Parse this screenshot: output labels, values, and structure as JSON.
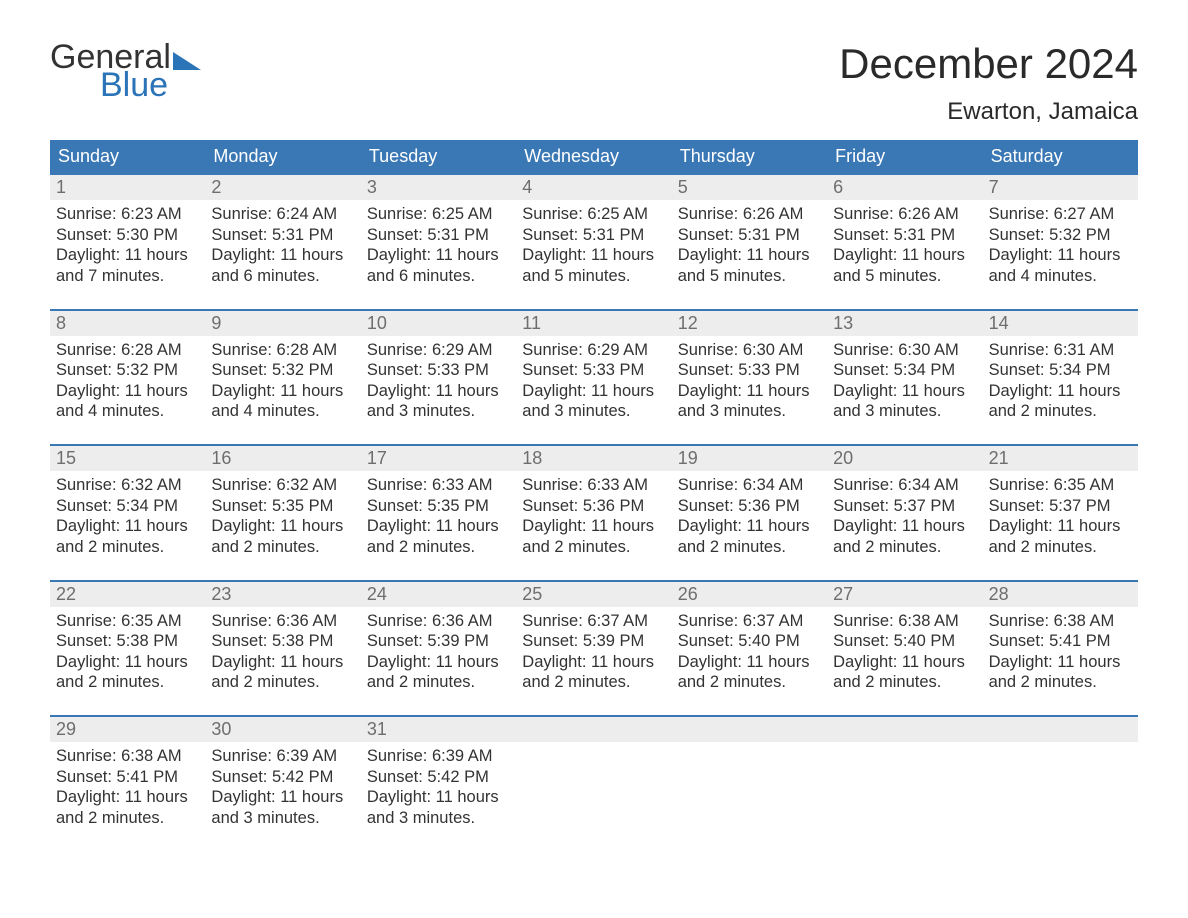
{
  "logo": {
    "word1": "General",
    "word2": "Blue"
  },
  "title": "December 2024",
  "location": "Ewarton, Jamaica",
  "colors": {
    "header_bg": "#3a78b5",
    "header_text": "#ffffff",
    "daynum_bg": "#ededed",
    "daynum_text": "#6e6e6e",
    "body_text": "#333333",
    "accent": "#2b74b8",
    "page_bg": "#ffffff"
  },
  "day_names": [
    "Sunday",
    "Monday",
    "Tuesday",
    "Wednesday",
    "Thursday",
    "Friday",
    "Saturday"
  ],
  "weeks": [
    [
      {
        "n": "1",
        "sr": "Sunrise: 6:23 AM",
        "ss": "Sunset: 5:30 PM",
        "d1": "Daylight: 11 hours",
        "d2": "and 7 minutes."
      },
      {
        "n": "2",
        "sr": "Sunrise: 6:24 AM",
        "ss": "Sunset: 5:31 PM",
        "d1": "Daylight: 11 hours",
        "d2": "and 6 minutes."
      },
      {
        "n": "3",
        "sr": "Sunrise: 6:25 AM",
        "ss": "Sunset: 5:31 PM",
        "d1": "Daylight: 11 hours",
        "d2": "and 6 minutes."
      },
      {
        "n": "4",
        "sr": "Sunrise: 6:25 AM",
        "ss": "Sunset: 5:31 PM",
        "d1": "Daylight: 11 hours",
        "d2": "and 5 minutes."
      },
      {
        "n": "5",
        "sr": "Sunrise: 6:26 AM",
        "ss": "Sunset: 5:31 PM",
        "d1": "Daylight: 11 hours",
        "d2": "and 5 minutes."
      },
      {
        "n": "6",
        "sr": "Sunrise: 6:26 AM",
        "ss": "Sunset: 5:31 PM",
        "d1": "Daylight: 11 hours",
        "d2": "and 5 minutes."
      },
      {
        "n": "7",
        "sr": "Sunrise: 6:27 AM",
        "ss": "Sunset: 5:32 PM",
        "d1": "Daylight: 11 hours",
        "d2": "and 4 minutes."
      }
    ],
    [
      {
        "n": "8",
        "sr": "Sunrise: 6:28 AM",
        "ss": "Sunset: 5:32 PM",
        "d1": "Daylight: 11 hours",
        "d2": "and 4 minutes."
      },
      {
        "n": "9",
        "sr": "Sunrise: 6:28 AM",
        "ss": "Sunset: 5:32 PM",
        "d1": "Daylight: 11 hours",
        "d2": "and 4 minutes."
      },
      {
        "n": "10",
        "sr": "Sunrise: 6:29 AM",
        "ss": "Sunset: 5:33 PM",
        "d1": "Daylight: 11 hours",
        "d2": "and 3 minutes."
      },
      {
        "n": "11",
        "sr": "Sunrise: 6:29 AM",
        "ss": "Sunset: 5:33 PM",
        "d1": "Daylight: 11 hours",
        "d2": "and 3 minutes."
      },
      {
        "n": "12",
        "sr": "Sunrise: 6:30 AM",
        "ss": "Sunset: 5:33 PM",
        "d1": "Daylight: 11 hours",
        "d2": "and 3 minutes."
      },
      {
        "n": "13",
        "sr": "Sunrise: 6:30 AM",
        "ss": "Sunset: 5:34 PM",
        "d1": "Daylight: 11 hours",
        "d2": "and 3 minutes."
      },
      {
        "n": "14",
        "sr": "Sunrise: 6:31 AM",
        "ss": "Sunset: 5:34 PM",
        "d1": "Daylight: 11 hours",
        "d2": "and 2 minutes."
      }
    ],
    [
      {
        "n": "15",
        "sr": "Sunrise: 6:32 AM",
        "ss": "Sunset: 5:34 PM",
        "d1": "Daylight: 11 hours",
        "d2": "and 2 minutes."
      },
      {
        "n": "16",
        "sr": "Sunrise: 6:32 AM",
        "ss": "Sunset: 5:35 PM",
        "d1": "Daylight: 11 hours",
        "d2": "and 2 minutes."
      },
      {
        "n": "17",
        "sr": "Sunrise: 6:33 AM",
        "ss": "Sunset: 5:35 PM",
        "d1": "Daylight: 11 hours",
        "d2": "and 2 minutes."
      },
      {
        "n": "18",
        "sr": "Sunrise: 6:33 AM",
        "ss": "Sunset: 5:36 PM",
        "d1": "Daylight: 11 hours",
        "d2": "and 2 minutes."
      },
      {
        "n": "19",
        "sr": "Sunrise: 6:34 AM",
        "ss": "Sunset: 5:36 PM",
        "d1": "Daylight: 11 hours",
        "d2": "and 2 minutes."
      },
      {
        "n": "20",
        "sr": "Sunrise: 6:34 AM",
        "ss": "Sunset: 5:37 PM",
        "d1": "Daylight: 11 hours",
        "d2": "and 2 minutes."
      },
      {
        "n": "21",
        "sr": "Sunrise: 6:35 AM",
        "ss": "Sunset: 5:37 PM",
        "d1": "Daylight: 11 hours",
        "d2": "and 2 minutes."
      }
    ],
    [
      {
        "n": "22",
        "sr": "Sunrise: 6:35 AM",
        "ss": "Sunset: 5:38 PM",
        "d1": "Daylight: 11 hours",
        "d2": "and 2 minutes."
      },
      {
        "n": "23",
        "sr": "Sunrise: 6:36 AM",
        "ss": "Sunset: 5:38 PM",
        "d1": "Daylight: 11 hours",
        "d2": "and 2 minutes."
      },
      {
        "n": "24",
        "sr": "Sunrise: 6:36 AM",
        "ss": "Sunset: 5:39 PM",
        "d1": "Daylight: 11 hours",
        "d2": "and 2 minutes."
      },
      {
        "n": "25",
        "sr": "Sunrise: 6:37 AM",
        "ss": "Sunset: 5:39 PM",
        "d1": "Daylight: 11 hours",
        "d2": "and 2 minutes."
      },
      {
        "n": "26",
        "sr": "Sunrise: 6:37 AM",
        "ss": "Sunset: 5:40 PM",
        "d1": "Daylight: 11 hours",
        "d2": "and 2 minutes."
      },
      {
        "n": "27",
        "sr": "Sunrise: 6:38 AM",
        "ss": "Sunset: 5:40 PM",
        "d1": "Daylight: 11 hours",
        "d2": "and 2 minutes."
      },
      {
        "n": "28",
        "sr": "Sunrise: 6:38 AM",
        "ss": "Sunset: 5:41 PM",
        "d1": "Daylight: 11 hours",
        "d2": "and 2 minutes."
      }
    ],
    [
      {
        "n": "29",
        "sr": "Sunrise: 6:38 AM",
        "ss": "Sunset: 5:41 PM",
        "d1": "Daylight: 11 hours",
        "d2": "and 2 minutes."
      },
      {
        "n": "30",
        "sr": "Sunrise: 6:39 AM",
        "ss": "Sunset: 5:42 PM",
        "d1": "Daylight: 11 hours",
        "d2": "and 3 minutes."
      },
      {
        "n": "31",
        "sr": "Sunrise: 6:39 AM",
        "ss": "Sunset: 5:42 PM",
        "d1": "Daylight: 11 hours",
        "d2": "and 3 minutes."
      },
      null,
      null,
      null,
      null
    ]
  ]
}
